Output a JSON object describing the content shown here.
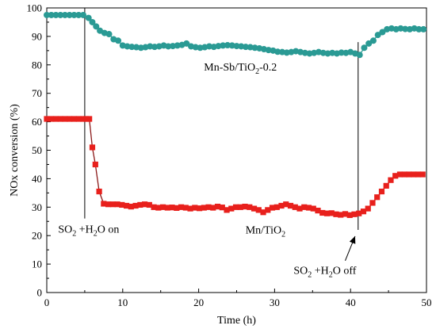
{
  "chart_data": {
    "type": "line",
    "xlabel": "Time (h)",
    "ylabel": "NOx conversion (%)",
    "xlim": [
      0,
      50
    ],
    "ylim": [
      0,
      100
    ],
    "x_ticks": [
      0,
      10,
      20,
      30,
      40,
      50
    ],
    "y_ticks": [
      0,
      10,
      20,
      30,
      40,
      50,
      60,
      70,
      80,
      90,
      100
    ],
    "x_tick_labels": [
      "0",
      "10",
      "20",
      "30",
      "40",
      "50"
    ],
    "y_tick_labels": [
      "0",
      "10",
      "20",
      "30",
      "40",
      "50",
      "60",
      "70",
      "80",
      "90",
      "100"
    ],
    "grid": false,
    "series": [
      {
        "marker": "circle",
        "color": "#2a9a94",
        "points": [
          [
            0,
            97.5
          ],
          [
            0.6,
            97.5
          ],
          [
            1.2,
            97.5
          ],
          [
            1.8,
            97.5
          ],
          [
            2.4,
            97.5
          ],
          [
            3.0,
            97.5
          ],
          [
            3.6,
            97.5
          ],
          [
            4.2,
            97.5
          ],
          [
            4.8,
            97.5
          ],
          [
            5.5,
            96.5
          ],
          [
            6.0,
            95
          ],
          [
            6.5,
            93.5
          ],
          [
            7.0,
            92
          ],
          [
            7.6,
            91.2
          ],
          [
            8.2,
            90.8
          ],
          [
            8.8,
            89
          ],
          [
            9.4,
            88.5
          ],
          [
            10.0,
            86.8
          ],
          [
            10.6,
            86.5
          ],
          [
            11.2,
            86.3
          ],
          [
            11.8,
            86.2
          ],
          [
            12.4,
            86.0
          ],
          [
            13.0,
            86.2
          ],
          [
            13.6,
            86.5
          ],
          [
            14.2,
            86.3
          ],
          [
            14.8,
            86.5
          ],
          [
            15.4,
            86.8
          ],
          [
            16.0,
            86.5
          ],
          [
            16.6,
            86.6
          ],
          [
            17.2,
            86.8
          ],
          [
            17.8,
            87.0
          ],
          [
            18.4,
            87.5
          ],
          [
            19.0,
            86.5
          ],
          [
            19.6,
            86.2
          ],
          [
            20.2,
            86.0
          ],
          [
            20.8,
            86.2
          ],
          [
            21.4,
            86.5
          ],
          [
            22.0,
            86.3
          ],
          [
            22.6,
            86.6
          ],
          [
            23.2,
            86.8
          ],
          [
            23.8,
            86.9
          ],
          [
            24.4,
            86.8
          ],
          [
            25.0,
            86.6
          ],
          [
            25.6,
            86.5
          ],
          [
            26.2,
            86.3
          ],
          [
            26.8,
            86.2
          ],
          [
            27.4,
            86.0
          ],
          [
            28.0,
            85.8
          ],
          [
            28.6,
            85.5
          ],
          [
            29.2,
            85.2
          ],
          [
            29.8,
            85.0
          ],
          [
            30.4,
            84.6
          ],
          [
            31.0,
            84.5
          ],
          [
            31.6,
            84.3
          ],
          [
            32.2,
            84.5
          ],
          [
            32.8,
            84.8
          ],
          [
            33.4,
            84.5
          ],
          [
            34.0,
            84.2
          ],
          [
            34.6,
            84.0
          ],
          [
            35.2,
            84.2
          ],
          [
            35.8,
            84.5
          ],
          [
            36.4,
            84.2
          ],
          [
            37.0,
            84.0
          ],
          [
            37.6,
            84.2
          ],
          [
            38.2,
            84.0
          ],
          [
            38.8,
            84.3
          ],
          [
            39.4,
            84.2
          ],
          [
            40.0,
            84.5
          ],
          [
            40.6,
            84.0
          ],
          [
            41.2,
            83.5
          ],
          [
            41.8,
            86.0
          ],
          [
            42.4,
            87.5
          ],
          [
            43.0,
            88.5
          ],
          [
            43.6,
            90.5
          ],
          [
            44.2,
            91.5
          ],
          [
            44.8,
            92.5
          ],
          [
            45.4,
            92.8
          ],
          [
            46.0,
            92.5
          ],
          [
            46.6,
            92.8
          ],
          [
            47.2,
            92.6
          ],
          [
            47.8,
            92.5
          ],
          [
            48.4,
            92.8
          ],
          [
            49.0,
            92.5
          ],
          [
            49.6,
            92.5
          ]
        ]
      },
      {
        "marker": "square",
        "color": "#e8201c",
        "line_color": "#8b1a1a",
        "points": [
          [
            0,
            61.0
          ],
          [
            0.6,
            61.0
          ],
          [
            1.2,
            61.0
          ],
          [
            1.8,
            61.0
          ],
          [
            2.4,
            61.0
          ],
          [
            3.0,
            61.0
          ],
          [
            3.6,
            61.0
          ],
          [
            4.2,
            61.0
          ],
          [
            4.8,
            61.0
          ],
          [
            5.2,
            61.0
          ],
          [
            5.6,
            61.0
          ],
          [
            6.0,
            51.0
          ],
          [
            6.4,
            45.0
          ],
          [
            6.9,
            35.5
          ],
          [
            7.5,
            31.2
          ],
          [
            8.1,
            31.0
          ],
          [
            8.7,
            31.0
          ],
          [
            9.3,
            31.0
          ],
          [
            9.9,
            30.8
          ],
          [
            10.5,
            30.5
          ],
          [
            11.1,
            30.2
          ],
          [
            11.7,
            30.5
          ],
          [
            12.3,
            30.8
          ],
          [
            12.9,
            31.0
          ],
          [
            13.5,
            30.8
          ],
          [
            14.1,
            30.0
          ],
          [
            14.7,
            29.8
          ],
          [
            15.3,
            30.0
          ],
          [
            15.9,
            29.8
          ],
          [
            16.5,
            29.9
          ],
          [
            17.1,
            29.7
          ],
          [
            17.7,
            30.0
          ],
          [
            18.3,
            29.8
          ],
          [
            18.9,
            29.5
          ],
          [
            19.5,
            29.8
          ],
          [
            20.1,
            29.6
          ],
          [
            20.7,
            29.8
          ],
          [
            21.3,
            30.0
          ],
          [
            21.9,
            29.8
          ],
          [
            22.5,
            30.2
          ],
          [
            23.1,
            29.9
          ],
          [
            23.7,
            29.0
          ],
          [
            24.3,
            29.5
          ],
          [
            24.9,
            30.0
          ],
          [
            25.5,
            30.0
          ],
          [
            26.1,
            30.2
          ],
          [
            26.7,
            30.0
          ],
          [
            27.3,
            29.5
          ],
          [
            27.9,
            29.0
          ],
          [
            28.5,
            28.2
          ],
          [
            29.1,
            29.0
          ],
          [
            29.7,
            29.8
          ],
          [
            30.3,
            30.0
          ],
          [
            30.9,
            30.5
          ],
          [
            31.5,
            31.0
          ],
          [
            32.1,
            30.5
          ],
          [
            32.7,
            30.0
          ],
          [
            33.3,
            29.5
          ],
          [
            33.9,
            30.0
          ],
          [
            34.5,
            29.8
          ],
          [
            35.1,
            29.5
          ],
          [
            35.7,
            28.8
          ],
          [
            36.3,
            28.0
          ],
          [
            36.9,
            27.8
          ],
          [
            37.5,
            27.9
          ],
          [
            38.1,
            27.5
          ],
          [
            38.7,
            27.3
          ],
          [
            39.3,
            27.6
          ],
          [
            39.9,
            27.2
          ],
          [
            40.5,
            27.5
          ],
          [
            41.1,
            27.8
          ],
          [
            41.7,
            28.5
          ],
          [
            42.3,
            29.5
          ],
          [
            42.9,
            31.5
          ],
          [
            43.5,
            33.5
          ],
          [
            44.1,
            35.5
          ],
          [
            44.7,
            37.5
          ],
          [
            45.3,
            39.5
          ],
          [
            45.9,
            41.0
          ],
          [
            46.5,
            41.5
          ],
          [
            47.1,
            41.5
          ],
          [
            47.7,
            41.5
          ],
          [
            48.3,
            41.5
          ],
          [
            48.9,
            41.5
          ],
          [
            49.5,
            41.5
          ]
        ]
      }
    ],
    "vertical_lines": [
      {
        "x": 5,
        "y_from": 100,
        "y_to": 26
      },
      {
        "x": 41,
        "y_from": 88,
        "y_to": 22
      }
    ],
    "annotations": {
      "mnsb": {
        "main": "Mn-Sb/TiO",
        "sub": "2",
        "tail": "-0.2",
        "x": 25.5,
        "y": 78
      },
      "mn": {
        "main": "Mn/TiO",
        "sub": "2",
        "x": 28.8,
        "y": 20.8
      },
      "so2_on": {
        "a": "SO",
        "a_sub": "2",
        "b": " +H",
        "b_sub": "2",
        "c": "O on",
        "x": 1.5,
        "y": 21
      },
      "so2_off": {
        "a": "SO",
        "a_sub": "2",
        "b": " +H",
        "b_sub": "2",
        "c": "O off",
        "x": 32.5,
        "y": 6.5
      }
    },
    "arrow": {
      "from": [
        39.3,
        11.2
      ],
      "to": [
        40.6,
        19.8
      ]
    }
  }
}
